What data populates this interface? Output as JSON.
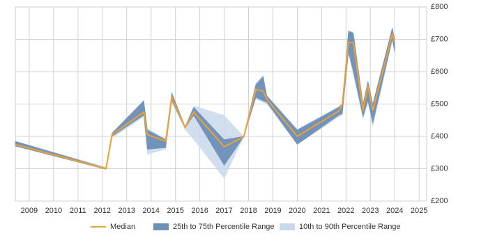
{
  "chart_data": {
    "type": "line",
    "x": [
      2008.43,
      2012.15,
      2012.4,
      2013.7,
      2013.85,
      2014.6,
      2014.85,
      2015.4,
      2015.75,
      2017.0,
      2017.8,
      2018.3,
      2018.6,
      2018.75,
      2020.0,
      2021.7,
      2021.85,
      2022.1,
      2022.3,
      2022.7,
      2022.9,
      2023.1,
      2023.9,
      2024.0
    ],
    "series": [
      {
        "name": "Median",
        "color": "#f0a030",
        "values": [
          375,
          300,
          405,
          475,
          405,
          385,
          520,
          428,
          475,
          368,
          398,
          545,
          540,
          515,
          400,
          478,
          500,
          690,
          690,
          480,
          555,
          480,
          715,
          690
        ]
      },
      {
        "name": "25th to 75th Percentile Range",
        "color": "#6e8fb8",
        "low": [
          370,
          298,
          400,
          465,
          360,
          365,
          510,
          425,
          465,
          310,
          398,
          520,
          510,
          505,
          375,
          465,
          470,
          660,
          600,
          460,
          510,
          440,
          700,
          660
        ],
        "high": [
          385,
          302,
          410,
          510,
          420,
          390,
          535,
          430,
          490,
          390,
          400,
          560,
          585,
          525,
          420,
          490,
          500,
          725,
          720,
          500,
          570,
          500,
          735,
          700
        ]
      },
      {
        "name": "10th to 90th Percentile Range",
        "color": "#c8d9ec",
        "low": [
          370,
          298,
          395,
          460,
          345,
          360,
          505,
          420,
          390,
          270,
          398,
          515,
          505,
          500,
          375,
          460,
          465,
          655,
          590,
          455,
          505,
          430,
          695,
          655
        ],
        "high": [
          385,
          305,
          412,
          512,
          425,
          392,
          537,
          432,
          495,
          465,
          400,
          565,
          590,
          528,
          422,
          492,
          505,
          727,
          722,
          502,
          572,
          502,
          737,
          702
        ]
      }
    ],
    "xlim": [
      2008.43,
      2025.31
    ],
    "xticks": [
      2009,
      2010,
      2011,
      2012,
      2013,
      2014,
      2015,
      2016,
      2017,
      2018,
      2019,
      2020,
      2021,
      2022,
      2023,
      2024,
      2025
    ],
    "ylim": [
      200,
      800
    ],
    "yticks": [
      {
        "value": 200,
        "label": "£200"
      },
      {
        "value": 300,
        "label": "£300"
      },
      {
        "value": 400,
        "label": "£400"
      },
      {
        "value": 500,
        "label": "£500"
      },
      {
        "value": 600,
        "label": "£600"
      },
      {
        "value": 700,
        "label": "£700"
      },
      {
        "value": 800,
        "label": "£800"
      }
    ],
    "grid": true,
    "legend": "bottom"
  }
}
